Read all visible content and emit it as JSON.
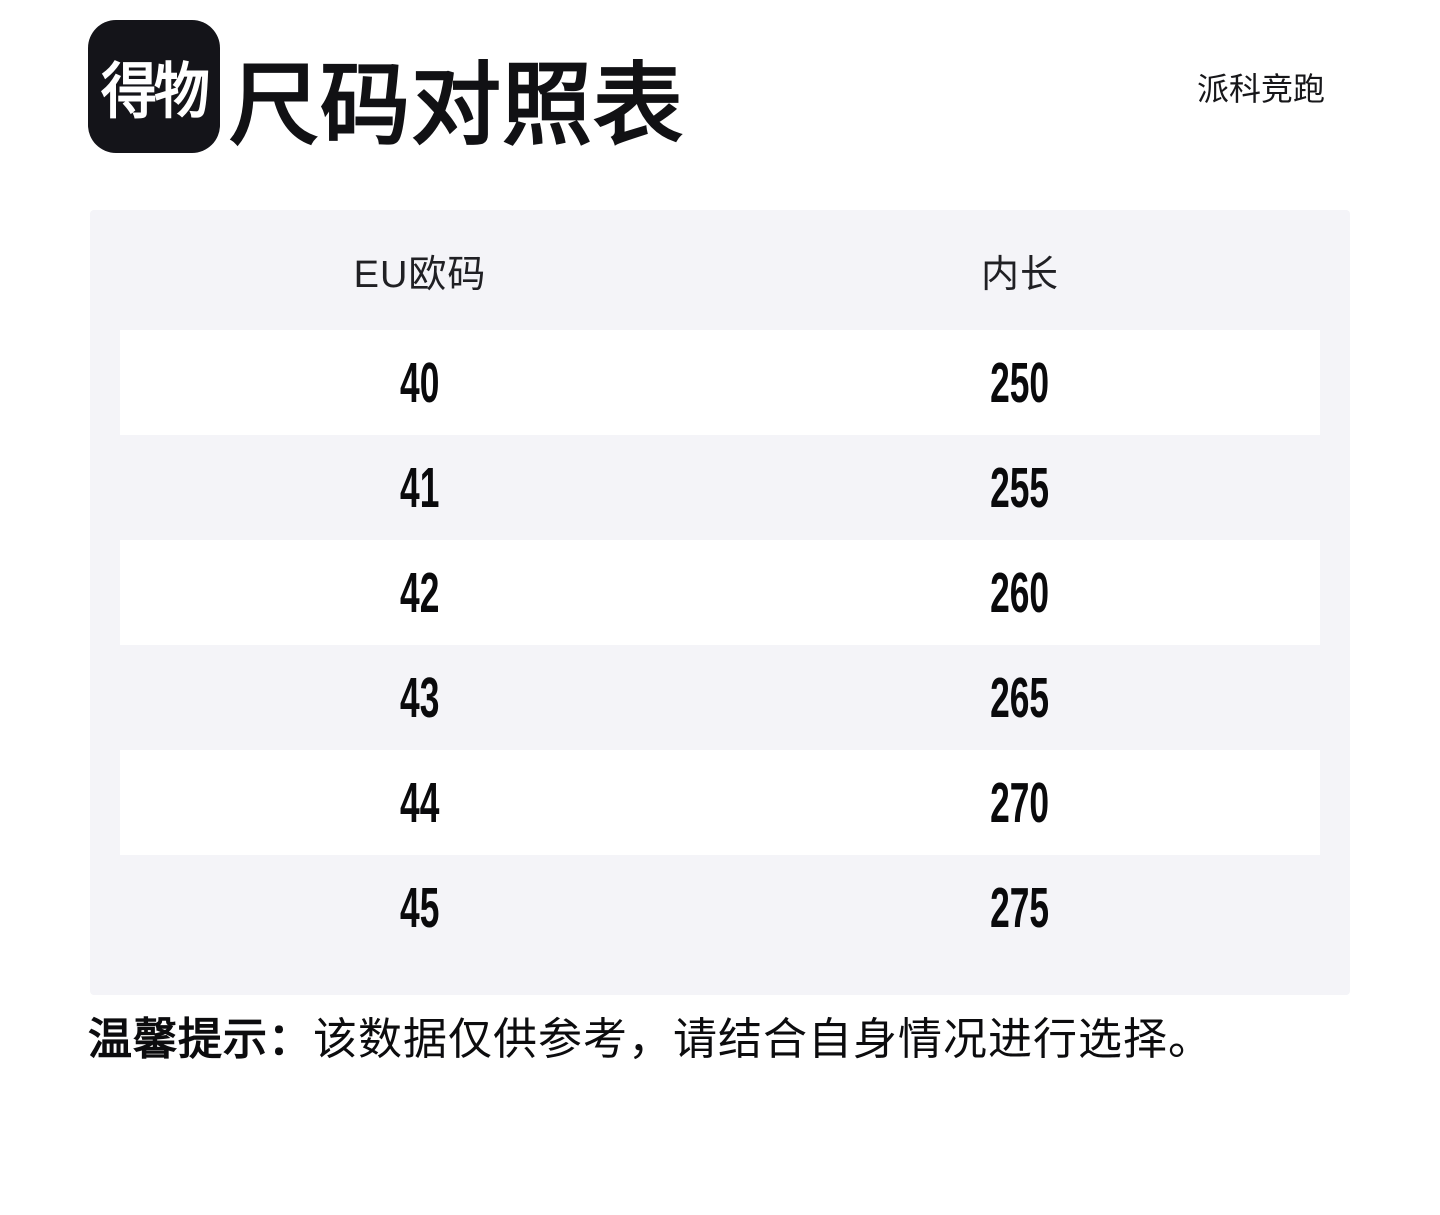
{
  "header": {
    "logo_text": "得物",
    "title": "尺码对照表",
    "brand": "派科竞跑"
  },
  "table": {
    "columns": [
      "EU欧码",
      "内长"
    ],
    "rows": [
      {
        "eu": "40",
        "inner_length": "250"
      },
      {
        "eu": "41",
        "inner_length": "255"
      },
      {
        "eu": "42",
        "inner_length": "260"
      },
      {
        "eu": "43",
        "inner_length": "265"
      },
      {
        "eu": "44",
        "inner_length": "270"
      },
      {
        "eu": "45",
        "inner_length": "275"
      }
    ]
  },
  "footer": {
    "tip_label": "温馨提示：",
    "tip_text": "该数据仅供参考，请结合自身情况进行选择。"
  },
  "colors": {
    "table_background": "#f4f4f8",
    "row_highlight": "#ffffff",
    "logo_background": "#141419",
    "text": "#111114"
  }
}
